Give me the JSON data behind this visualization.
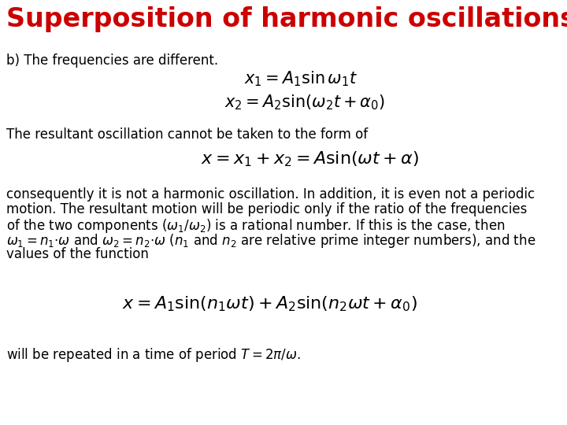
{
  "title": "Superposition of harmonic oscillations.",
  "title_color": "#cc0000",
  "title_fontsize": 24,
  "bg_color": "#ffffff",
  "text_color": "#000000",
  "body_fontsize": 12,
  "math_fontsize": 13,
  "math_fontsize_large": 15,
  "line_b": "b) The frequencies are different.",
  "eq1": "$x_1 = A_1 \\sin \\omega_1 t$",
  "eq2": "$x_2 = A_2 \\sin(\\omega_2 t + \\alpha_0)$",
  "line_resultant": "The resultant oscillation cannot be taken to the form of",
  "eq3": "$x = x_1 + x_2 = A\\sin(\\omega t + \\alpha)$",
  "para1": "consequently it is not a harmonic oscillation. In addition, it is even not a periodic",
  "para2": "motion. The resultant motion will be periodic only if the ratio of the frequencies",
  "para3": "of the two components ($\\omega_1/\\omega_2$) is a rational number. If this is the case, then",
  "para4": "$\\omega_1 = n_1{\\cdot}\\omega$ and $\\omega_2 = n_2{\\cdot}\\omega$ ($n_1$ and $n_2$ are relative prime integer numbers), and the",
  "para5": "values of the function",
  "eq4": "$x = A_1 \\sin(n_1 \\omega t) + A_2 \\sin(n_2 \\omega t + \\alpha_0)$",
  "line_period": "will be repeated in a time of period $T = 2\\pi/\\omega$."
}
